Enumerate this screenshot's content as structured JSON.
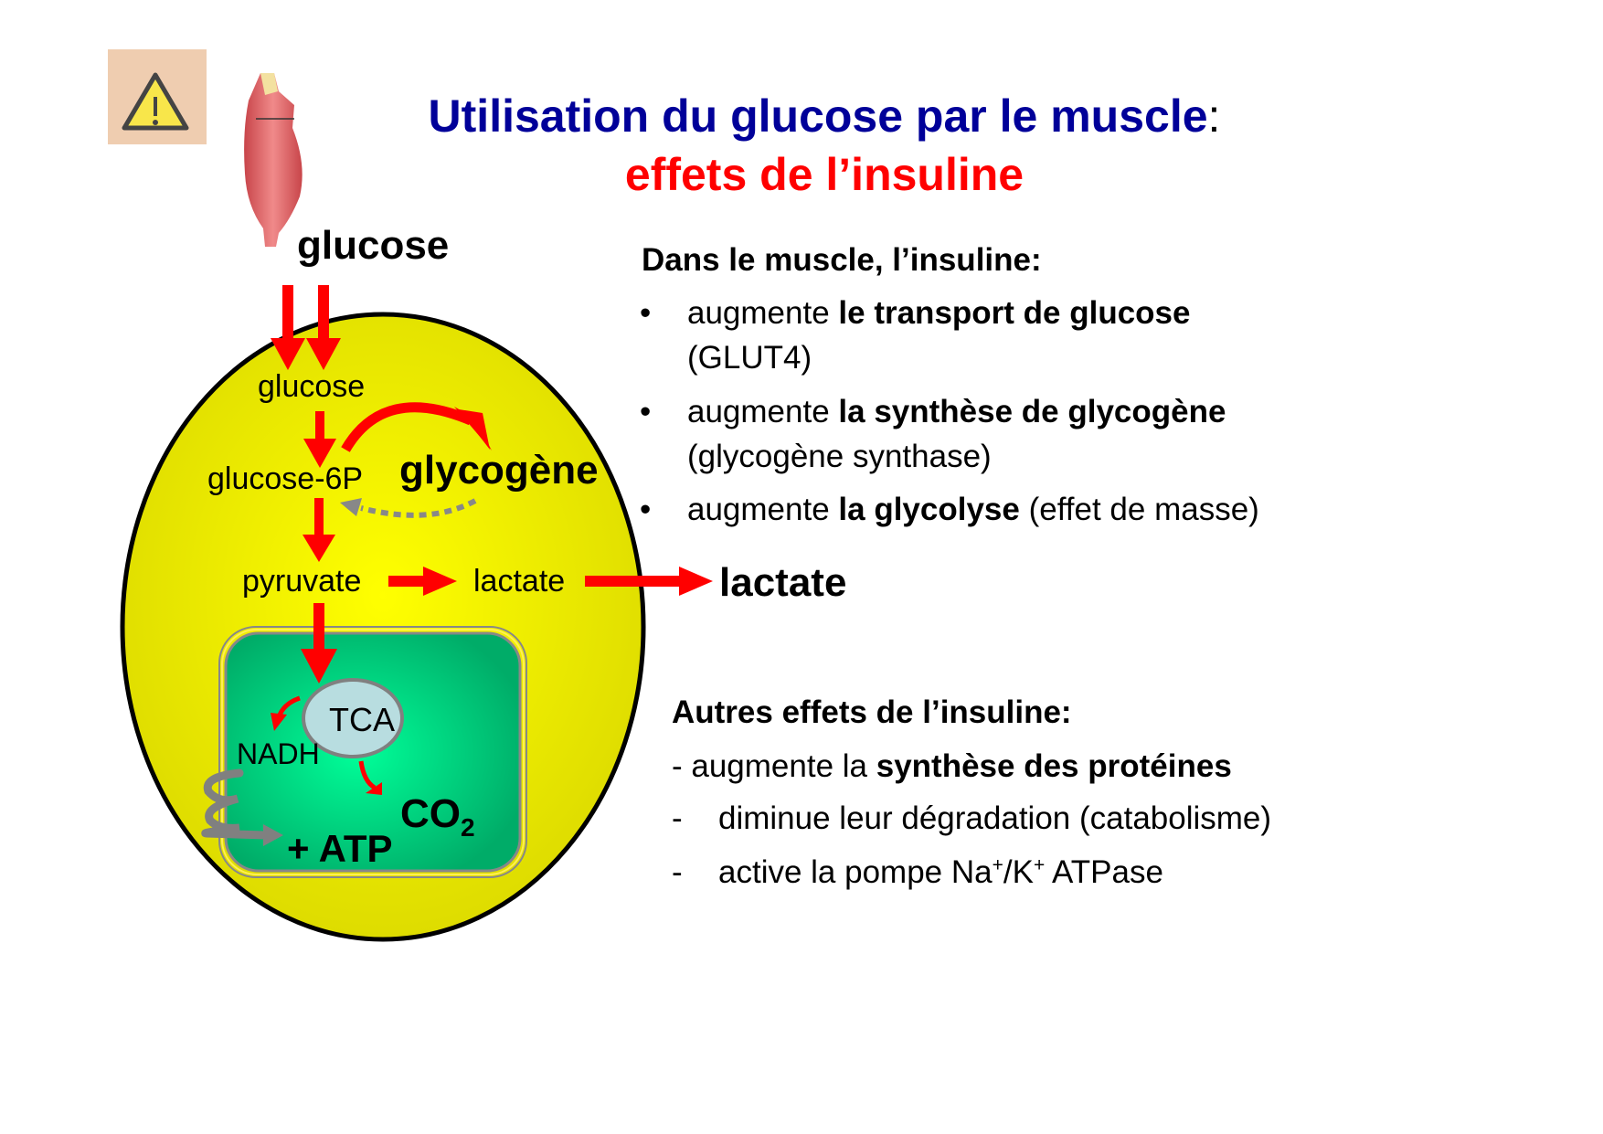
{
  "title": {
    "main": "Utilisation du glucose par le muscle",
    "colon": ":",
    "sub": "effets de l’insuline"
  },
  "colors": {
    "title": "#000099",
    "subtitle": "#ff0000",
    "cell": "#f5f500",
    "mitochondrion": "#00b36b",
    "arrow": "#ff0000",
    "warning_bg": "#efcdb0"
  },
  "icons": {
    "warning": "warning-triangle-icon",
    "muscle": "muscle-image"
  },
  "diagram": {
    "glucose_outside": "glucose",
    "glucose_inside": "glucose",
    "glucose6p": "glucose-6P",
    "glycogene": "glycogène",
    "pyruvate": "pyruvate",
    "lactate_inside": "lactate",
    "lactate_outside": "lactate",
    "tca": "TCA",
    "nadh": "NADH",
    "co2": "CO",
    "co2_sub": "2",
    "atp": "+ ATP"
  },
  "muscle_effects": {
    "heading": "Dans le muscle, l’insuline:",
    "items": [
      {
        "bullet": "•",
        "pre": "augmente ",
        "bold": "le transport de glucose",
        "post": "",
        "line2": "(GLUT4)"
      },
      {
        "bullet": "•",
        "pre": "augmente ",
        "bold": "la synthèse de glycogène",
        "post": "",
        "line2": "(glycogène synthase)"
      },
      {
        "bullet": "•",
        "pre": "augmente ",
        "bold": "la glycolyse",
        "post": " (effet de masse)",
        "line2": ""
      }
    ]
  },
  "other_effects": {
    "heading": "Autres effets de l’insuline:",
    "item1_pre": "- augmente la ",
    "item1_bold": "synthèse des protéines",
    "item2_dash": "-",
    "item2": "diminue leur dégradation (catabolisme)",
    "item3_dash": "-",
    "item3_pre": "active la pompe Na",
    "item3_sup1": "+",
    "item3_mid": "/K",
    "item3_sup2": "+",
    "item3_post": " ATPase"
  }
}
